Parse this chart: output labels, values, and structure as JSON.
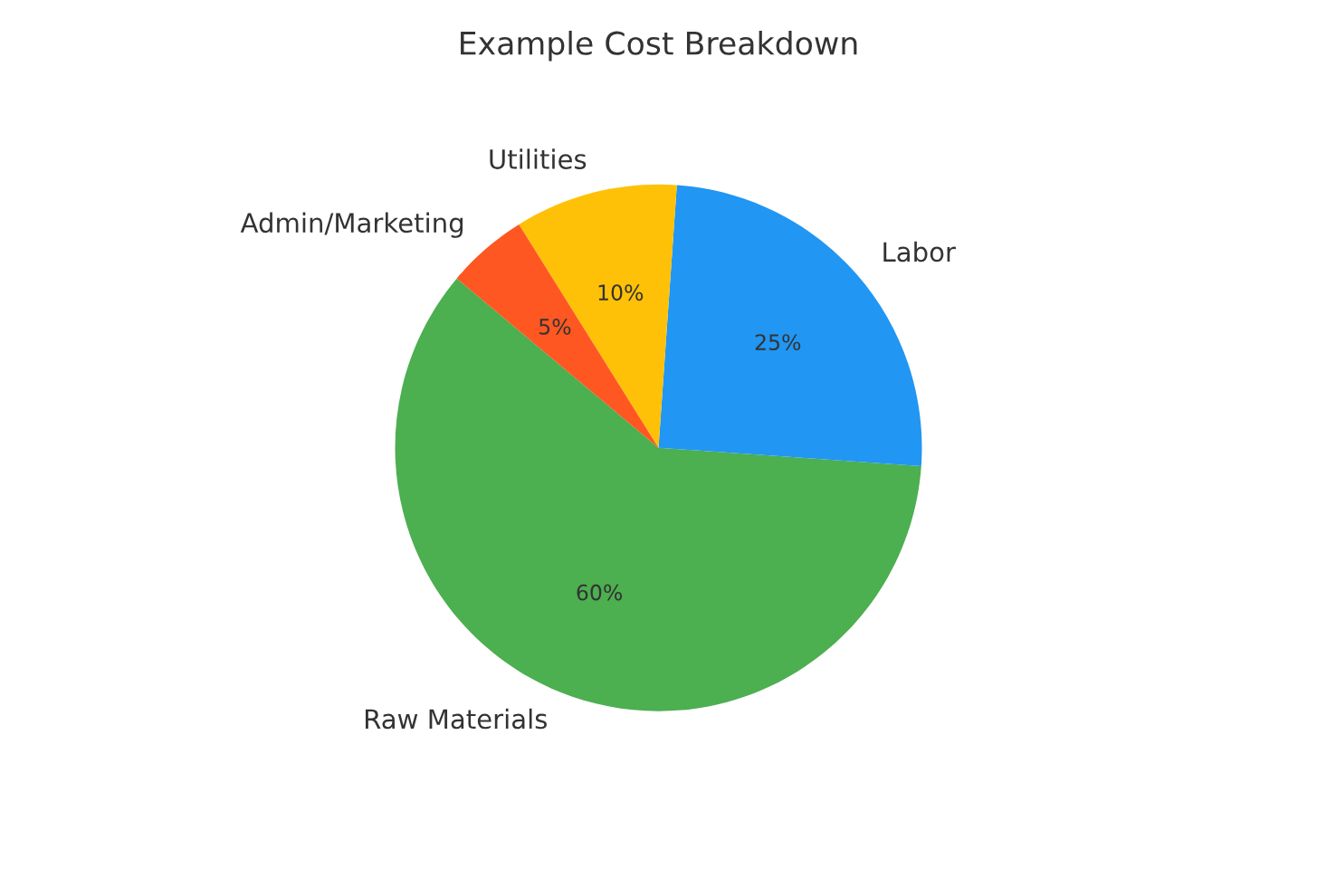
{
  "chart_data": {
    "type": "pie",
    "title": "Example Cost Breakdown",
    "categories": [
      "Raw Materials",
      "Labor",
      "Utilities",
      "Admin/Marketing"
    ],
    "values": [
      60,
      25,
      10,
      5
    ],
    "value_labels": [
      "60%",
      "25%",
      "10%",
      "5%"
    ],
    "colors": [
      "#4caf50",
      "#2196f3",
      "#ffc107",
      "#ff5722"
    ]
  }
}
